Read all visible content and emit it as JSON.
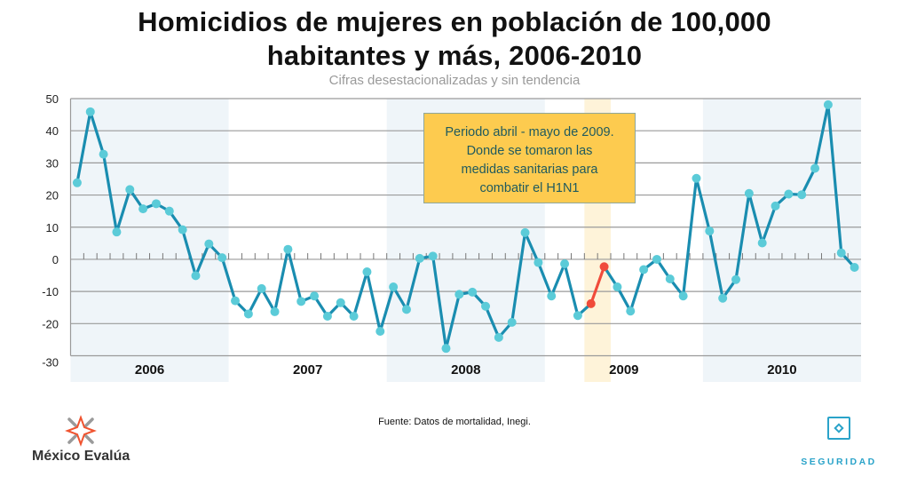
{
  "header": {
    "title_line1": "Homicidios de mujeres en población de 100,000",
    "title_line2": "habitantes y más, 2006-2010",
    "subtitle": "Cifras desestacionalizadas y sin tendencia"
  },
  "annotation": {
    "lines": [
      "Periodo abril - mayo de 2009.",
      "Donde se tomaron las",
      "medidas sanitarias para",
      "combatir el H1N1"
    ]
  },
  "footer": {
    "source": "Fuente: Datos de mortalidad, Inegi.",
    "brand": "México Evalúa",
    "section": "SEGURIDAD"
  },
  "colors": {
    "line": "#1A8DB0",
    "marker": "#5BCBD8",
    "highlight_line": "#F04B3A",
    "year_band": "#EFF5F9",
    "highlight_band": "#FEF3D9",
    "annotation_bg": "#FDCB4F",
    "grid": "#9a9a9a"
  },
  "chart_data": {
    "type": "line",
    "title": "Homicidios de mujeres en población de 100,000 habitantes y más, 2006-2010",
    "subtitle": "Cifras desestacionalizadas y sin tendencia",
    "xlabel": "",
    "ylabel": "",
    "ylim": [
      -30,
      50
    ],
    "yticks": [
      50,
      40,
      30,
      20,
      10,
      0,
      -10,
      -20,
      -30
    ],
    "grid": true,
    "legend": "none",
    "categories": [
      "2006",
      "2007",
      "2008",
      "2009",
      "2010"
    ],
    "shaded_years": [
      "2006",
      "2008",
      "2010"
    ],
    "highlight": {
      "label": "abril - mayo 2009",
      "start_index": 39,
      "end_index": 40
    },
    "series": [
      {
        "name": "Homicidios de mujeres",
        "frequency": "monthly",
        "start": "2006-01",
        "values": [
          23.8,
          45.9,
          32.7,
          8.5,
          21.7,
          15.7,
          17.3,
          15.0,
          9.2,
          -5.1,
          4.8,
          0.5,
          -12.9,
          -17.0,
          -9.1,
          -16.3,
          3.1,
          -13.1,
          -11.4,
          -17.7,
          -13.5,
          -17.7,
          -3.9,
          -22.4,
          -8.6,
          -15.6,
          0.3,
          1.0,
          -27.7,
          -10.9,
          -10.2,
          -14.6,
          -24.3,
          -19.6,
          8.3,
          -1.0,
          -11.4,
          -1.4,
          -17.5,
          -13.8,
          -2.3,
          -8.6,
          -16.1,
          -3.2,
          0.0,
          -6.1,
          -11.4,
          25.2,
          8.8,
          -12.1,
          -6.3,
          20.5,
          5.1,
          16.6,
          20.3,
          20.1,
          28.3,
          48.1,
          2.0,
          -2.5
        ]
      }
    ]
  }
}
